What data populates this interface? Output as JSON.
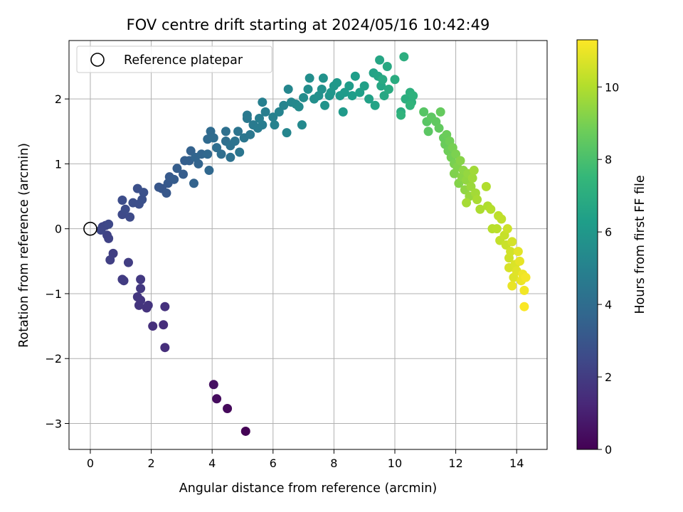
{
  "chart_data": {
    "type": "scatter",
    "title": "FOV centre drift starting at 2024/05/16 10:42:49",
    "xlabel": "Angular distance from reference (arcmin)",
    "ylabel": "Rotation from reference (arcmin)",
    "xlim": [
      -0.7,
      15.0
    ],
    "ylim": [
      -3.4,
      2.9
    ],
    "xticks": [
      0,
      2,
      4,
      6,
      8,
      10,
      12,
      14
    ],
    "yticks": [
      -3,
      -2,
      -1,
      0,
      1,
      2
    ],
    "grid": true,
    "legend": {
      "placement": "upper-left",
      "label": "Reference platepar",
      "marker": "open-circle"
    },
    "reference_point": {
      "x": 0,
      "y": 0
    },
    "colorbar": {
      "label": "Hours from first FF file",
      "colormap": "viridis",
      "range": [
        0,
        11.3
      ],
      "ticks": [
        0,
        2,
        4,
        6,
        8,
        10
      ]
    },
    "points": [
      [
        5.1,
        -3.12,
        0.05
      ],
      [
        4.5,
        -2.77,
        0.25
      ],
      [
        4.15,
        -2.62,
        0.35
      ],
      [
        4.05,
        -2.4,
        0.45
      ],
      [
        2.45,
        -1.83,
        1.5
      ],
      [
        2.4,
        -1.48,
        1.45
      ],
      [
        2.05,
        -1.5,
        1.55
      ],
      [
        2.45,
        -1.2,
        1.6
      ],
      [
        1.85,
        -1.22,
        1.65
      ],
      [
        1.9,
        -1.18,
        1.7
      ],
      [
        1.6,
        -1.18,
        1.72
      ],
      [
        1.65,
        -1.1,
        1.75
      ],
      [
        1.55,
        -1.05,
        1.8
      ],
      [
        1.65,
        -0.92,
        1.85
      ],
      [
        1.65,
        -0.78,
        1.9
      ],
      [
        1.1,
        -0.8,
        1.95
      ],
      [
        1.05,
        -0.78,
        2.0
      ],
      [
        1.25,
        -0.52,
        2.05
      ],
      [
        0.75,
        -0.38,
        2.1
      ],
      [
        0.65,
        -0.48,
        2.15
      ],
      [
        0.6,
        -0.15,
        2.2
      ],
      [
        0.55,
        -0.1,
        2.25
      ],
      [
        0.5,
        0.05,
        2.3
      ],
      [
        0.4,
        0.03,
        2.35
      ],
      [
        0.35,
        -0.02,
        2.4
      ],
      [
        0.6,
        0.07,
        2.45
      ],
      [
        1.05,
        0.22,
        2.5
      ],
      [
        1.3,
        0.18,
        2.55
      ],
      [
        1.15,
        0.3,
        2.6
      ],
      [
        1.05,
        0.44,
        2.65
      ],
      [
        1.4,
        0.4,
        2.7
      ],
      [
        1.6,
        0.38,
        2.72
      ],
      [
        1.55,
        0.62,
        2.75
      ],
      [
        1.7,
        0.45,
        2.78
      ],
      [
        1.75,
        0.56,
        2.8
      ],
      [
        2.35,
        0.62,
        3.0
      ],
      [
        2.25,
        0.64,
        3.05
      ],
      [
        2.5,
        0.55,
        3.1
      ],
      [
        2.55,
        0.7,
        3.15
      ],
      [
        2.6,
        0.8,
        3.2
      ],
      [
        2.75,
        0.76,
        3.25
      ],
      [
        3.05,
        0.84,
        3.3
      ],
      [
        2.85,
        0.93,
        3.35
      ],
      [
        3.1,
        1.05,
        3.4
      ],
      [
        3.25,
        1.05,
        3.45
      ],
      [
        3.3,
        1.2,
        3.5
      ],
      [
        3.4,
        0.7,
        3.55
      ],
      [
        3.55,
        1.0,
        3.6
      ],
      [
        3.45,
        1.1,
        3.65
      ],
      [
        3.65,
        1.15,
        3.7
      ],
      [
        3.9,
        0.9,
        3.75
      ],
      [
        3.85,
        1.15,
        3.8
      ],
      [
        3.85,
        1.38,
        3.85
      ],
      [
        3.95,
        1.5,
        3.9
      ],
      [
        4.05,
        1.4,
        3.95
      ],
      [
        4.15,
        1.25,
        4.0
      ],
      [
        4.3,
        1.15,
        4.05
      ],
      [
        4.45,
        1.35,
        4.1
      ],
      [
        4.45,
        1.5,
        4.15
      ],
      [
        4.6,
        1.1,
        4.2
      ],
      [
        4.6,
        1.28,
        4.25
      ],
      [
        4.75,
        1.35,
        4.3
      ],
      [
        4.85,
        1.5,
        4.35
      ],
      [
        4.9,
        1.18,
        4.4
      ],
      [
        5.05,
        1.4,
        4.45
      ],
      [
        5.25,
        1.45,
        4.5
      ],
      [
        5.15,
        1.7,
        4.55
      ],
      [
        5.15,
        1.75,
        4.6
      ],
      [
        5.35,
        1.6,
        4.65
      ],
      [
        5.5,
        1.55,
        4.7
      ],
      [
        5.65,
        1.6,
        4.75
      ],
      [
        5.55,
        1.7,
        4.8
      ],
      [
        5.75,
        1.8,
        4.85
      ],
      [
        5.65,
        1.95,
        4.9
      ],
      [
        6.0,
        1.72,
        4.95
      ],
      [
        6.05,
        1.6,
        5.0
      ],
      [
        6.2,
        1.8,
        5.05
      ],
      [
        6.35,
        1.9,
        5.1
      ],
      [
        6.45,
        1.48,
        5.15
      ],
      [
        6.5,
        2.15,
        5.2
      ],
      [
        6.6,
        1.95,
        5.25
      ],
      [
        6.75,
        1.92,
        5.3
      ],
      [
        6.95,
        1.6,
        5.35
      ],
      [
        6.85,
        1.88,
        5.4
      ],
      [
        7.0,
        2.02,
        5.45
      ],
      [
        7.15,
        2.15,
        5.5
      ],
      [
        7.2,
        2.32,
        5.55
      ],
      [
        7.35,
        2.0,
        5.6
      ],
      [
        7.5,
        2.05,
        5.65
      ],
      [
        7.6,
        2.15,
        5.7
      ],
      [
        7.65,
        2.32,
        5.75
      ],
      [
        7.7,
        1.9,
        5.8
      ],
      [
        7.85,
        2.05,
        5.85
      ],
      [
        7.9,
        2.1,
        5.9
      ],
      [
        8.0,
        2.2,
        5.95
      ],
      [
        8.1,
        2.25,
        6.0
      ],
      [
        8.2,
        2.05,
        6.05
      ],
      [
        8.3,
        1.8,
        6.1
      ],
      [
        8.35,
        2.1,
        6.15
      ],
      [
        8.5,
        2.2,
        6.2
      ],
      [
        8.6,
        2.05,
        6.25
      ],
      [
        8.7,
        2.35,
        6.3
      ],
      [
        8.85,
        2.1,
        6.35
      ],
      [
        9.0,
        2.2,
        6.4
      ],
      [
        9.15,
        2.0,
        6.45
      ],
      [
        9.3,
        2.4,
        6.5
      ],
      [
        9.35,
        1.9,
        6.55
      ],
      [
        9.45,
        2.35,
        6.6
      ],
      [
        9.5,
        2.6,
        6.65
      ],
      [
        9.55,
        2.2,
        6.7
      ],
      [
        9.65,
        2.05,
        6.75
      ],
      [
        9.75,
        2.5,
        6.8
      ],
      [
        9.6,
        2.3,
        6.85
      ],
      [
        9.8,
        2.15,
        6.9
      ],
      [
        10.0,
        2.3,
        6.95
      ],
      [
        10.2,
        1.8,
        7.0
      ],
      [
        10.3,
        2.65,
        7.05
      ],
      [
        10.35,
        2.0,
        7.1
      ],
      [
        10.5,
        2.1,
        7.15
      ],
      [
        10.55,
        1.95,
        7.2
      ],
      [
        10.6,
        2.05,
        7.25
      ],
      [
        10.2,
        1.75,
        7.3
      ],
      [
        10.5,
        1.9,
        7.35
      ],
      [
        10.95,
        1.8,
        8.3
      ],
      [
        11.05,
        1.65,
        8.35
      ],
      [
        11.1,
        1.5,
        8.4
      ],
      [
        11.2,
        1.72,
        8.45
      ],
      [
        11.35,
        1.65,
        8.5
      ],
      [
        11.45,
        1.55,
        8.55
      ],
      [
        11.5,
        1.8,
        8.6
      ],
      [
        11.6,
        1.4,
        8.65
      ],
      [
        11.65,
        1.3,
        8.7
      ],
      [
        11.7,
        1.45,
        8.75
      ],
      [
        11.75,
        1.2,
        8.8
      ],
      [
        11.8,
        1.35,
        8.85
      ],
      [
        11.85,
        1.1,
        8.9
      ],
      [
        11.9,
        1.25,
        8.95
      ],
      [
        11.95,
        1.0,
        9.0
      ],
      [
        12.0,
        1.15,
        9.05
      ],
      [
        11.95,
        0.85,
        9.1
      ],
      [
        12.05,
        0.95,
        9.15
      ],
      [
        12.1,
        0.7,
        9.2
      ],
      [
        12.15,
        1.05,
        9.25
      ],
      [
        12.2,
        0.8,
        9.3
      ],
      [
        12.25,
        0.9,
        9.35
      ],
      [
        12.3,
        0.6,
        9.4
      ],
      [
        12.35,
        0.75,
        9.45
      ],
      [
        12.4,
        0.85,
        9.5
      ],
      [
        12.45,
        0.5,
        9.55
      ],
      [
        12.5,
        0.65,
        9.6
      ],
      [
        12.55,
        0.78,
        9.65
      ],
      [
        12.6,
        0.9,
        9.7
      ],
      [
        12.65,
        0.55,
        9.75
      ],
      [
        12.35,
        0.4,
        9.8
      ],
      [
        12.7,
        0.45,
        9.85
      ],
      [
        12.8,
        0.3,
        9.9
      ],
      [
        13.05,
        0.35,
        9.95
      ],
      [
        13.0,
        0.65,
        10.0
      ],
      [
        13.15,
        0.3,
        10.05
      ],
      [
        13.2,
        0.0,
        10.1
      ],
      [
        13.35,
        0.0,
        10.15
      ],
      [
        13.4,
        0.2,
        10.2
      ],
      [
        13.5,
        0.15,
        10.25
      ],
      [
        13.45,
        -0.18,
        10.3
      ],
      [
        13.6,
        -0.1,
        10.35
      ],
      [
        13.65,
        -0.25,
        10.4
      ],
      [
        13.7,
        0.0,
        10.45
      ],
      [
        13.75,
        -0.45,
        10.5
      ],
      [
        13.8,
        -0.35,
        10.55
      ],
      [
        13.85,
        -0.2,
        10.6
      ],
      [
        13.75,
        -0.6,
        10.65
      ],
      [
        13.95,
        -0.55,
        10.7
      ],
      [
        13.9,
        -0.75,
        10.75
      ],
      [
        14.0,
        -0.65,
        10.8
      ],
      [
        14.05,
        -0.35,
        10.85
      ],
      [
        14.1,
        -0.5,
        10.9
      ],
      [
        13.85,
        -0.88,
        10.95
      ],
      [
        14.15,
        -0.8,
        11.0
      ],
      [
        14.2,
        -0.7,
        11.05
      ],
      [
        14.25,
        -0.95,
        11.1
      ],
      [
        14.3,
        -0.75,
        11.15
      ],
      [
        14.25,
        -1.2,
        11.25
      ]
    ]
  }
}
